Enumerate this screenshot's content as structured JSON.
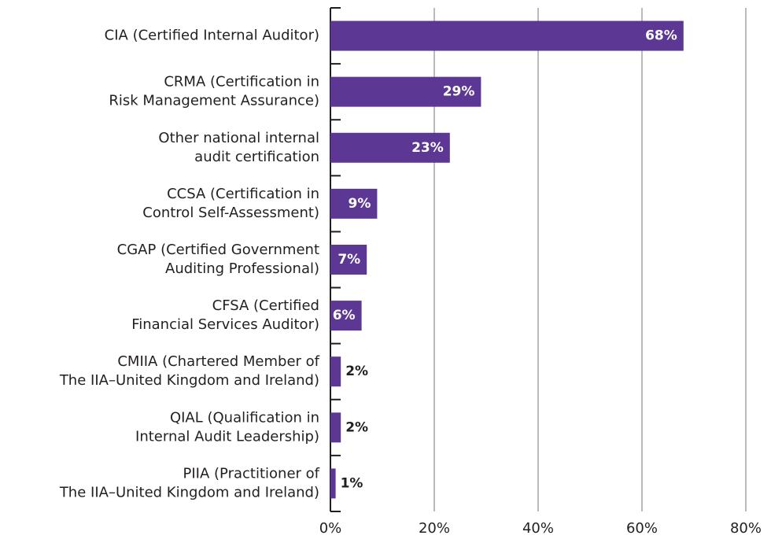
{
  "chart_data": {
    "type": "bar",
    "orientation": "horizontal",
    "categories": [
      [
        "CIA (Certified Internal Auditor)"
      ],
      [
        "CRMA (Certification in",
        "Risk Management Assurance)"
      ],
      [
        "Other national internal",
        "audit certification"
      ],
      [
        "CCSA (Certification in",
        "Control Self-Assessment)"
      ],
      [
        "CGAP (Certified Government",
        "Auditing Professional)"
      ],
      [
        "CFSA (Certified",
        "Financial Services Auditor)"
      ],
      [
        "CMIIA (Chartered Member of",
        "The IIA–United Kingdom and Ireland)"
      ],
      [
        "QIAL (Qualification in",
        "Internal Audit Leadership)"
      ],
      [
        "PIIA (Practitioner of",
        "The IIA–United Kingdom and Ireland)"
      ]
    ],
    "values": [
      68,
      29,
      23,
      9,
      7,
      6,
      2,
      2,
      1
    ],
    "value_labels": [
      "68%",
      "29%",
      "23%",
      "9%",
      "7%",
      "6%",
      "2%",
      "2%",
      "1%"
    ],
    "color": "#5c3794",
    "xlim": [
      0,
      80
    ],
    "xticks": [
      {
        "value": 0,
        "label": "0%"
      },
      {
        "value": 20,
        "label": "20%"
      },
      {
        "value": 40,
        "label": "40%"
      },
      {
        "value": 60,
        "label": "60%"
      },
      {
        "value": 80,
        "label": "80%"
      }
    ],
    "grid": true
  }
}
